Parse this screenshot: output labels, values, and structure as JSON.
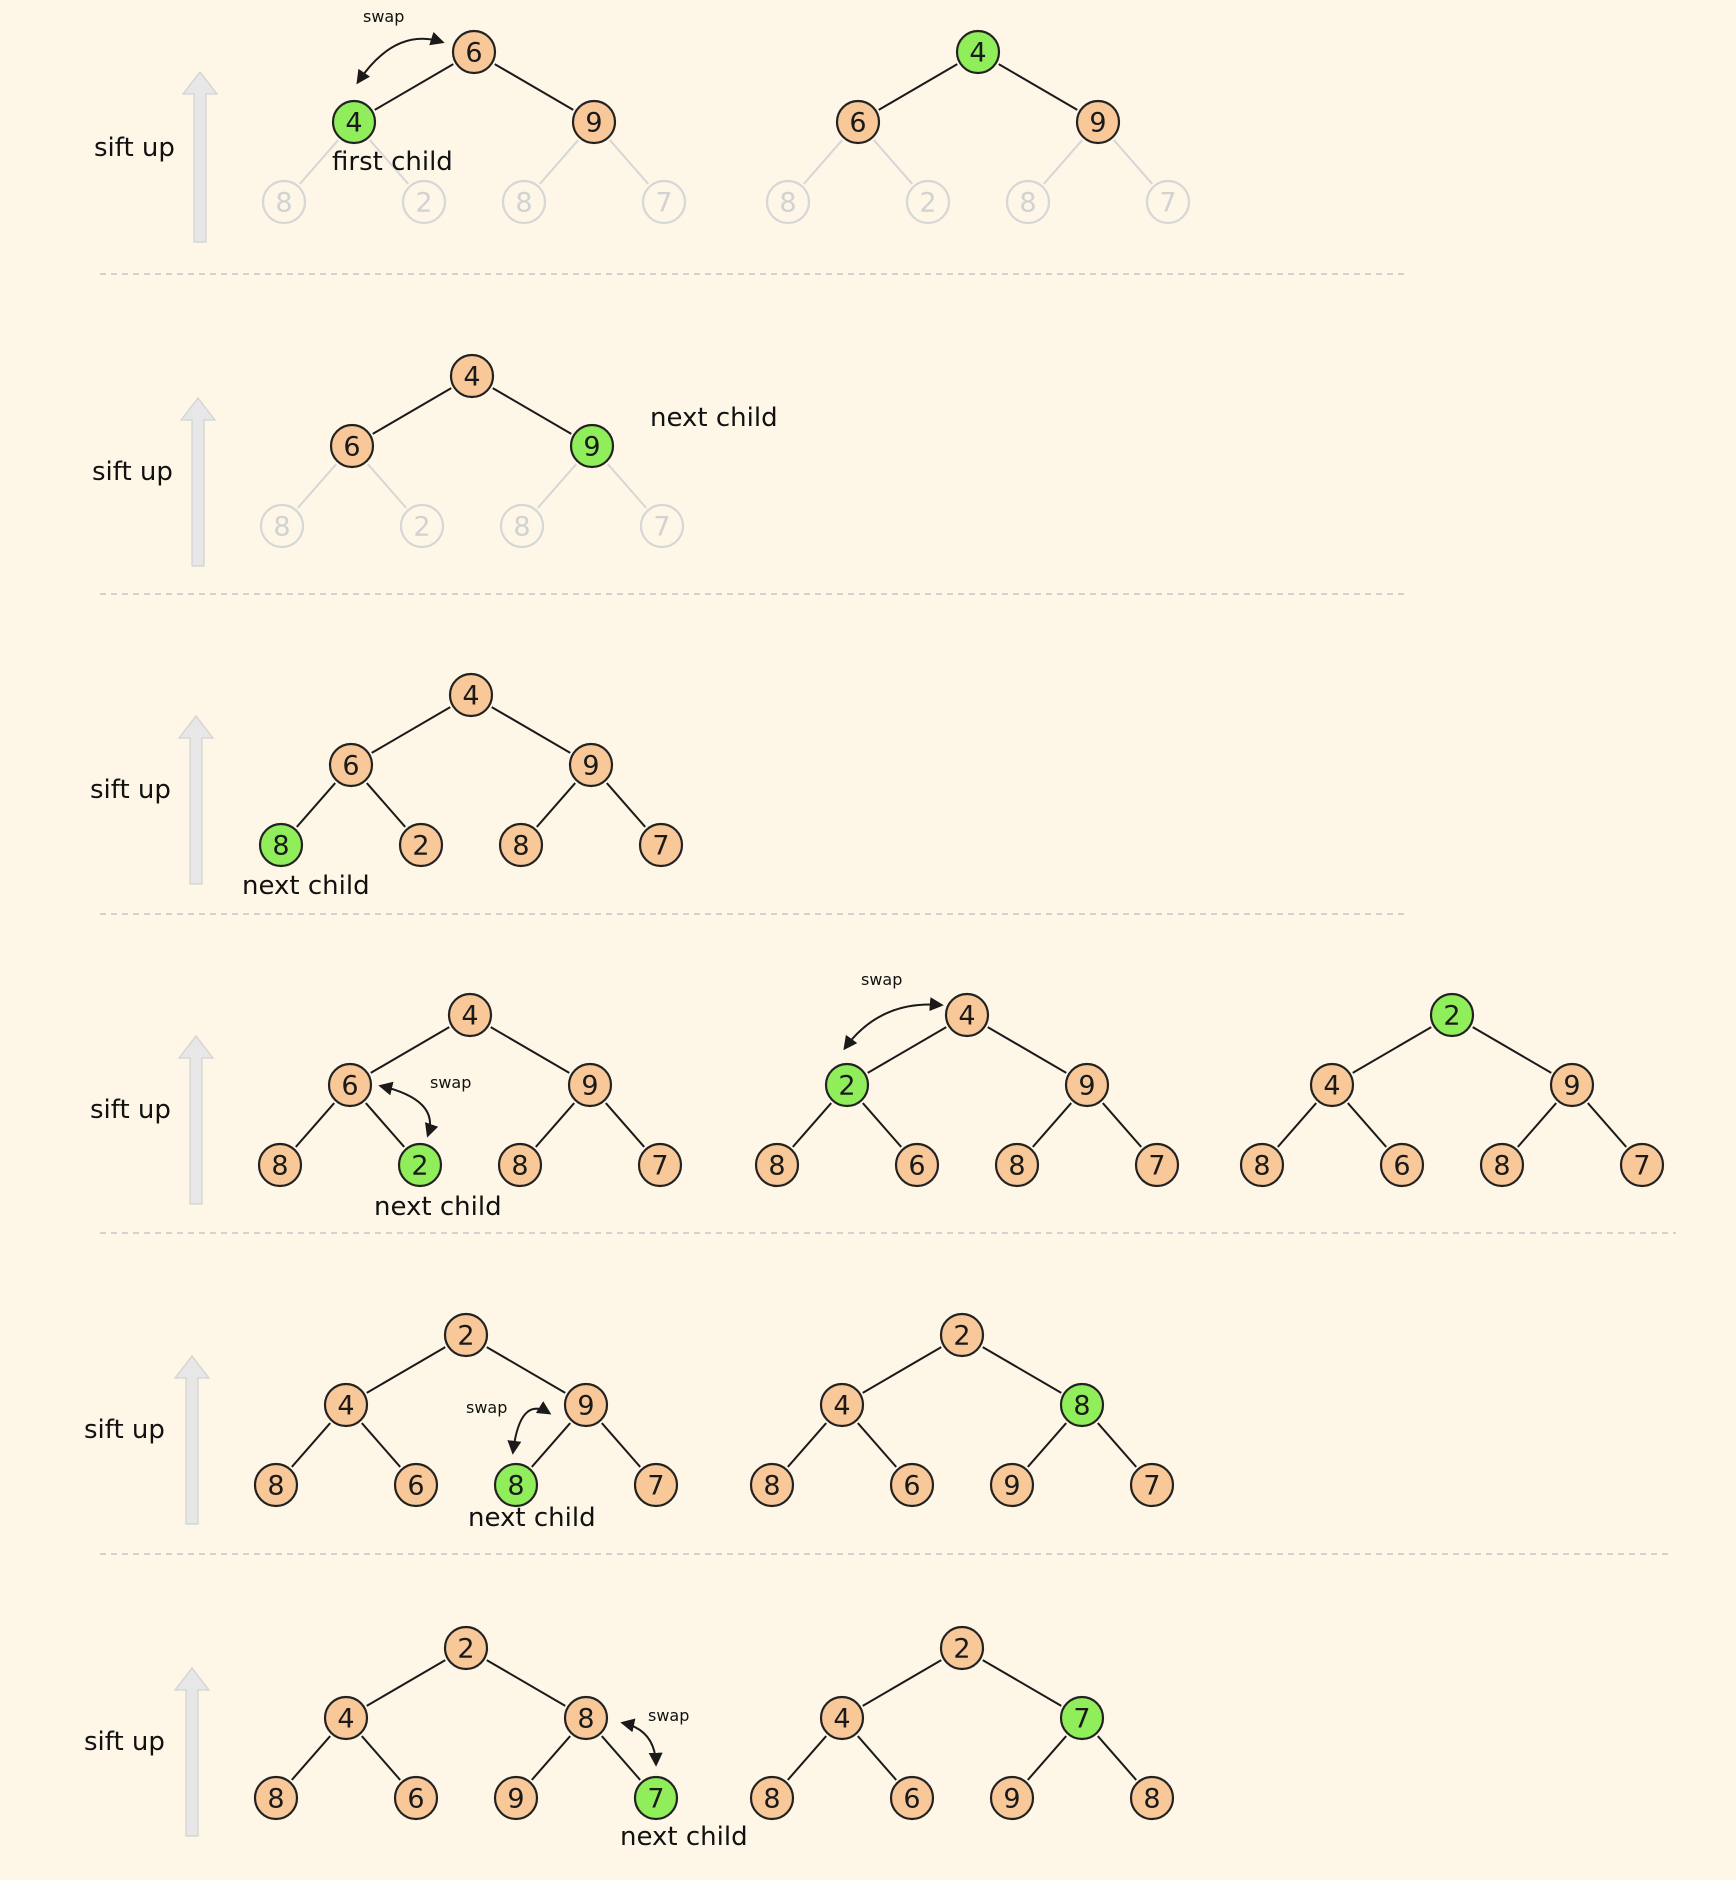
{
  "direction_label": "sift up",
  "swap_label": "swap",
  "rows": [
    {
      "label": "sift up",
      "trees": [
        {
          "values": [
            "6",
            "4",
            "9",
            "8",
            "2",
            "8",
            "7"
          ],
          "active": 1,
          "ghost_leaves": true,
          "caption": "first child",
          "swap": {
            "from": 0,
            "to": 1
          }
        },
        {
          "values": [
            "4",
            "6",
            "9",
            "8",
            "2",
            "8",
            "7"
          ],
          "active": 0,
          "ghost_leaves": true
        }
      ]
    },
    {
      "label": "sift up",
      "trees": [
        {
          "values": [
            "4",
            "6",
            "9",
            "8",
            "2",
            "8",
            "7"
          ],
          "active": 2,
          "ghost_leaves": true,
          "caption": "next child"
        }
      ]
    },
    {
      "label": "sift up",
      "trees": [
        {
          "values": [
            "4",
            "6",
            "9",
            "8",
            "2",
            "8",
            "7"
          ],
          "active": 3,
          "ghost_leaves": false,
          "caption": "next child"
        }
      ]
    },
    {
      "label": "sift up",
      "trees": [
        {
          "values": [
            "4",
            "6",
            "9",
            "8",
            "2",
            "8",
            "7"
          ],
          "active": 4,
          "ghost_leaves": false,
          "caption": "next child",
          "swap": {
            "from": 1,
            "to": 4
          }
        },
        {
          "values": [
            "4",
            "2",
            "9",
            "8",
            "6",
            "8",
            "7"
          ],
          "active": 1,
          "ghost_leaves": false,
          "swap": {
            "from": 0,
            "to": 1
          }
        },
        {
          "values": [
            "2",
            "4",
            "9",
            "8",
            "6",
            "8",
            "7"
          ],
          "active": 0,
          "ghost_leaves": false
        }
      ]
    },
    {
      "label": "sift up",
      "trees": [
        {
          "values": [
            "2",
            "4",
            "9",
            "8",
            "6",
            "8",
            "7"
          ],
          "active": 5,
          "ghost_leaves": false,
          "caption": "next child",
          "swap": {
            "from": 2,
            "to": 5
          }
        },
        {
          "values": [
            "2",
            "4",
            "8",
            "8",
            "6",
            "9",
            "7"
          ],
          "active": 2,
          "ghost_leaves": false
        }
      ]
    },
    {
      "label": "sift up",
      "trees": [
        {
          "values": [
            "2",
            "4",
            "8",
            "8",
            "6",
            "9",
            "7"
          ],
          "active": 6,
          "ghost_leaves": false,
          "caption": "next child",
          "swap": {
            "from": 2,
            "to": 6
          }
        },
        {
          "values": [
            "2",
            "4",
            "7",
            "8",
            "6",
            "9",
            "8"
          ],
          "active": 2,
          "ghost_leaves": false
        }
      ]
    }
  ],
  "colors": {
    "background": "#fef7e7",
    "node_fill": "#f9c898",
    "active_fill": "#90ee5a",
    "ghost_stroke": "#d6d6d6",
    "divider": "#c6c6c6"
  }
}
